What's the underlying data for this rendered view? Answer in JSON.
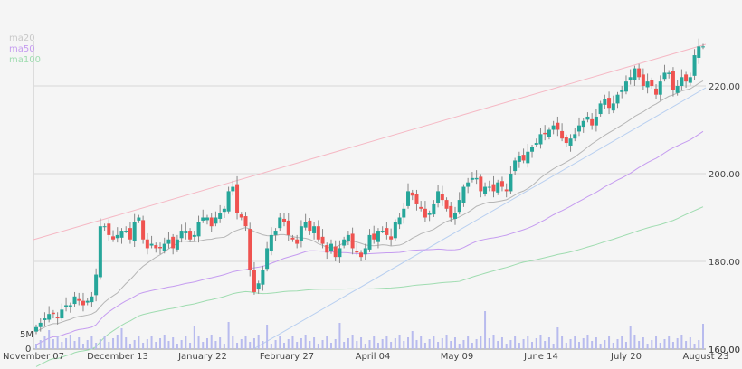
{
  "chart_data": {
    "type": "candlestick",
    "title": "",
    "legend": [
      {
        "name": "ma20",
        "color": "#c8c8c8"
      },
      {
        "name": "ma50",
        "color": "#c59cf0"
      },
      {
        "name": "ma100",
        "color": "#9fdcb0"
      }
    ],
    "legend_position": "top-left",
    "x_tick_labels": [
      "November 07",
      "December 13",
      "January 22",
      "February 27",
      "April 04",
      "May 09",
      "June 14",
      "July 20",
      "August 23"
    ],
    "y_tick_labels": [
      "160.00",
      "180.00",
      "200.00",
      "220.00"
    ],
    "y_ticks": [
      160,
      180,
      200,
      220
    ],
    "ylim": [
      160,
      232
    ],
    "volume_axis_labels": [
      "0",
      "5M"
    ],
    "grid": "horizontal",
    "colors": {
      "up": "#26a69a",
      "down": "#ef5350",
      "volume": "#b8bbee",
      "trendline_upper": "#f5b8c4",
      "trendline_lower": "#b8cff0",
      "background": "#f5f5f5"
    },
    "approx_close_series": [
      165,
      166,
      167,
      168,
      168,
      167,
      169,
      170,
      170,
      172,
      171,
      170,
      171,
      172,
      177,
      188,
      188,
      186,
      185,
      186,
      187,
      187,
      185,
      189,
      190,
      185,
      183,
      184,
      183,
      183,
      184,
      185,
      183,
      185,
      187,
      187,
      185,
      186,
      189,
      190,
      190,
      188,
      190,
      191,
      192,
      196,
      197,
      191,
      190,
      188,
      178,
      173,
      175,
      178,
      183,
      186,
      187,
      190,
      189,
      186,
      185,
      184,
      188,
      189,
      187,
      188,
      185,
      184,
      182,
      184,
      181,
      183,
      185,
      186,
      183,
      182,
      181,
      183,
      186,
      185,
      187,
      187,
      186,
      185,
      189,
      190,
      192,
      196,
      195,
      193,
      192,
      190,
      191,
      193,
      196,
      194,
      192,
      190,
      191,
      194,
      197,
      198,
      199,
      199,
      196,
      197,
      197,
      196,
      198,
      197,
      196,
      200,
      203,
      204,
      203,
      205,
      206,
      207,
      209,
      209,
      210,
      211,
      210,
      208,
      207,
      208,
      209,
      211,
      212,
      213,
      211,
      213,
      216,
      217,
      215,
      216,
      218,
      219,
      221,
      222,
      224,
      222,
      220,
      221,
      220,
      218,
      221,
      223,
      223,
      219,
      220,
      222,
      221,
      222,
      227,
      229,
      229
    ]
  }
}
